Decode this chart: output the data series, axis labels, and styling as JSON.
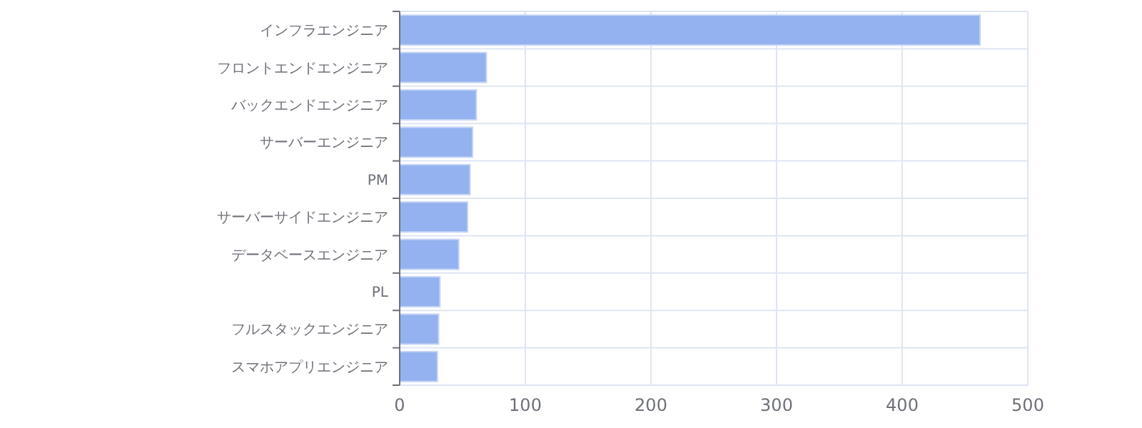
{
  "chart_data": {
    "type": "bar",
    "orientation": "horizontal",
    "categories": [
      "インフラエンジニア",
      "フロントエンドエンジニア",
      "バックエンドエンジニア",
      "サーバーエンジニア",
      "PM",
      "サーバーサイドエンジニア",
      "データベースエンジニア",
      "PL",
      "フルスタックエンジニア",
      "スマホアプリエンジニア"
    ],
    "values": [
      462,
      69,
      61,
      58,
      56,
      54,
      47,
      32,
      31,
      30
    ],
    "color": "#8eaeee",
    "xlim": [
      0,
      500
    ],
    "xticks": [
      0,
      100,
      200,
      300,
      400,
      500
    ],
    "grid": true
  }
}
